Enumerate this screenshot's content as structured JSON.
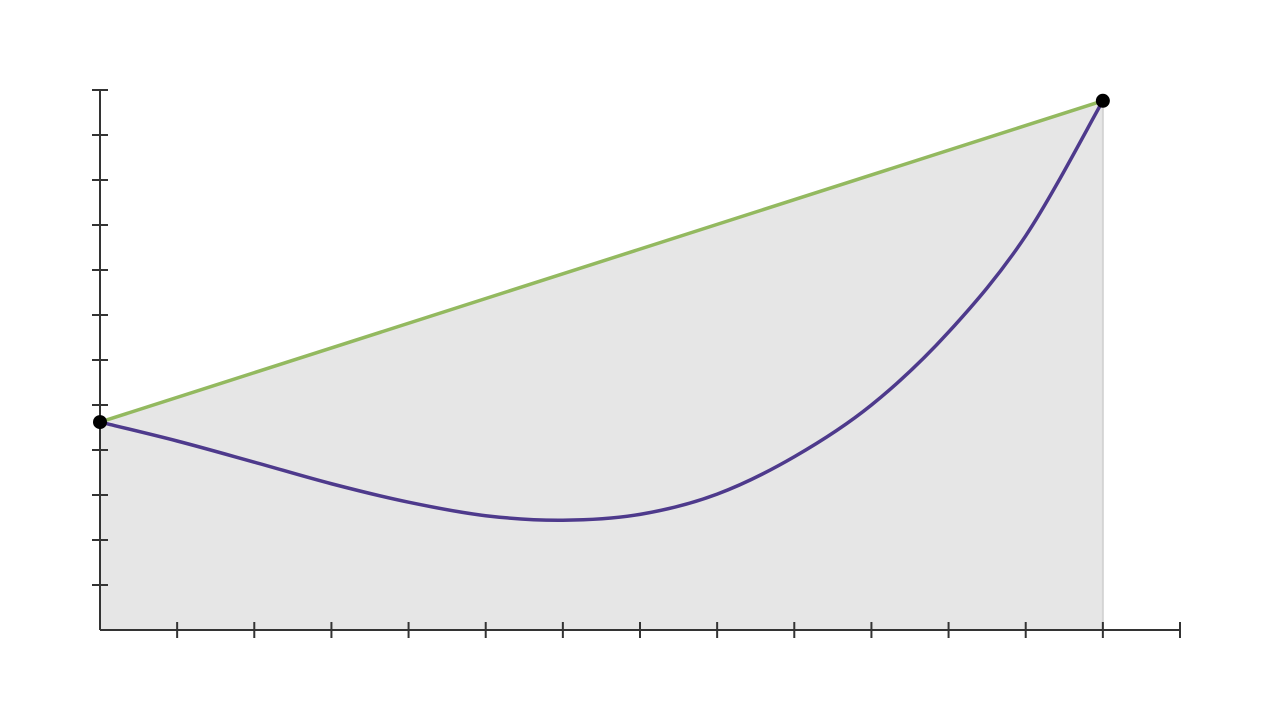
{
  "chart_data": {
    "type": "line",
    "xlim": [
      0,
      14
    ],
    "ylim": [
      0,
      12
    ],
    "x_ticks": [
      0,
      1,
      2,
      3,
      4,
      5,
      6,
      7,
      8,
      9,
      10,
      11,
      12,
      13,
      14
    ],
    "y_ticks": [
      0,
      1,
      2,
      3,
      4,
      5,
      6,
      7,
      8,
      9,
      10,
      11,
      12
    ],
    "grid": false,
    "points": [
      {
        "x": 0,
        "y": 4.62
      },
      {
        "x": 13,
        "y": 11.76
      }
    ],
    "curve": {
      "x": [
        0,
        1,
        2,
        3,
        4,
        5,
        6,
        7,
        8,
        9,
        10,
        11,
        12,
        13
      ],
      "y": [
        4.62,
        4.2,
        3.73,
        3.25,
        2.84,
        2.54,
        2.44,
        2.57,
        3.02,
        3.85,
        5.0,
        6.62,
        8.76,
        11.76
      ]
    },
    "secant": {
      "from": 0,
      "to": 13
    },
    "shaded_region": {
      "from": 0,
      "to": 13,
      "bounded_above_by": "secant"
    }
  },
  "colors": {
    "curve": "#4e3a8c",
    "secant": "#93b95f",
    "fill": "#e6e6e6",
    "fill_edge": "#d4d4d4",
    "axis": "#333333",
    "point": "#000000"
  }
}
